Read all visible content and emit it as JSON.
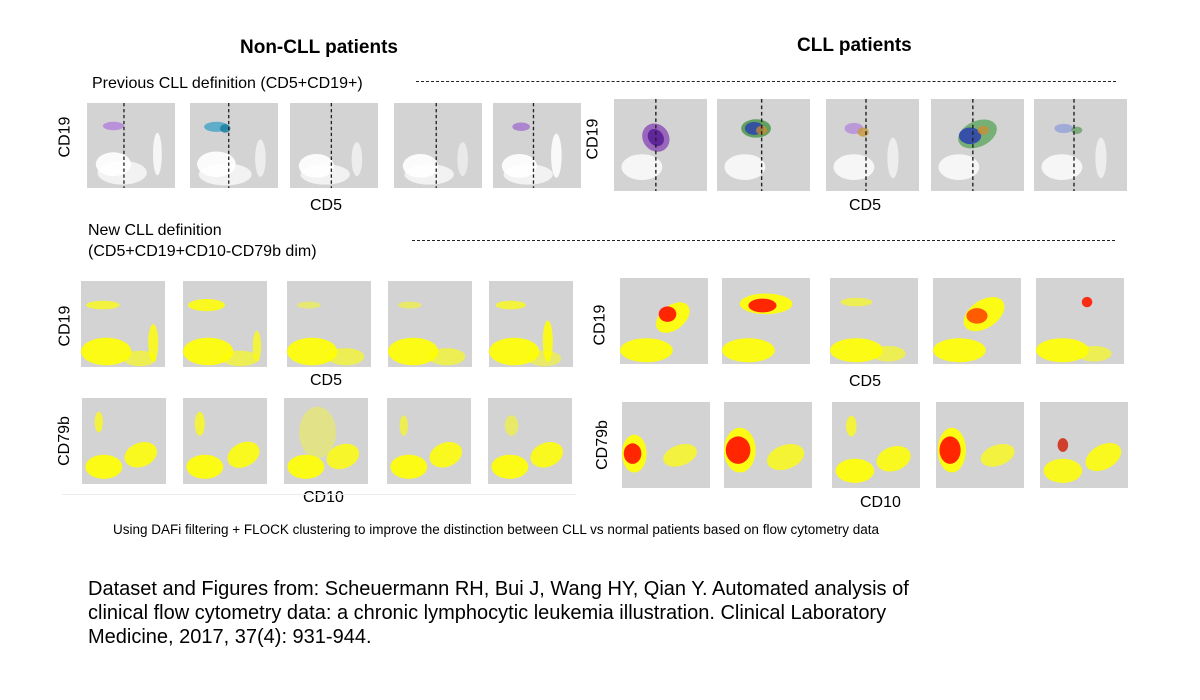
{
  "headers": {
    "non_cll": "Non-CLL patients",
    "cll": "CLL patients"
  },
  "previous_definition": "Previous CLL definition (CD5+CD19+)",
  "new_definition": {
    "line1": "New CLL definition",
    "line2": "(CD5+CD19+CD10-CD79b  dim)"
  },
  "axes": {
    "cd19": "CD19",
    "cd5": "CD5",
    "cd79b": "CD79b",
    "cd10": "CD10"
  },
  "caption": "Using DAFi filtering + FLOCK clustering to improve the distinction between CLL vs normal patients based on flow cytometry data",
  "citation": {
    "line1": "Dataset and Figures from: Scheuermann RH, Bui J, Wang HY, Qian Y. Automated analysis of",
    "line2": "clinical flow cytometry data: a chronic lymphocytic leukemia illustration. Clinical Laboratory",
    "line3": "Medicine, 2017, 37(4): 931-944."
  },
  "colors": {
    "panel_bg": "#d3d3d3",
    "yellow": "#ffff00",
    "red": "#ff1a00",
    "white_cloud": "#ffffff"
  }
}
